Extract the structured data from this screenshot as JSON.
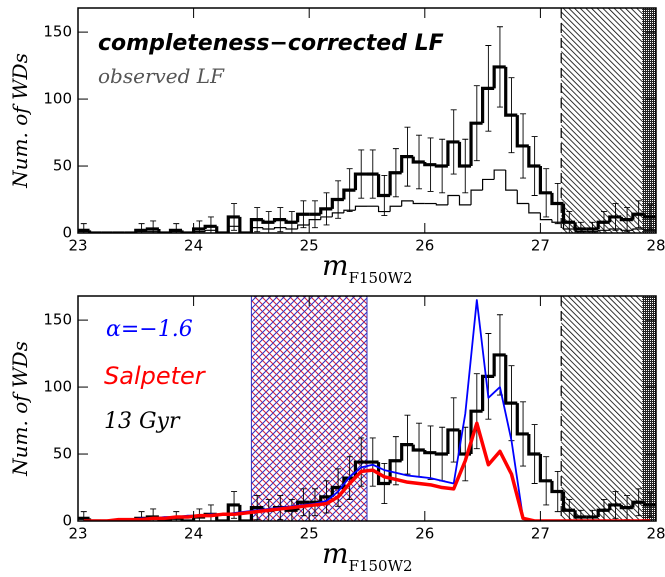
{
  "chart_data": [
    {
      "type": "histogram",
      "annotations": [
        "completeness−corrected LF",
        "observed LF"
      ],
      "ylabel": "Num. of WDs",
      "xlabel": "m",
      "xlabel_sub": "F150W2",
      "bins": [
        23.0,
        23.1,
        23.2,
        23.3,
        23.4,
        23.5,
        23.6,
        23.7,
        23.8,
        23.9,
        24.0,
        24.1,
        24.2,
        24.3,
        24.4,
        24.5,
        24.6,
        24.7,
        24.8,
        24.9,
        25.0,
        25.1,
        25.2,
        25.3,
        25.4,
        25.5,
        25.6,
        25.7,
        25.8,
        25.9,
        26.0,
        26.1,
        26.2,
        26.3,
        26.4,
        26.5,
        26.6,
        26.7,
        26.8,
        26.9,
        27.0,
        27.1,
        27.2,
        27.3,
        27.4,
        27.5,
        27.6,
        27.7,
        27.8,
        27.9,
        28.0
      ],
      "series": [
        {
          "name": "completeness−corrected LF",
          "color": "#000000",
          "values": [
            2,
            0,
            0,
            0,
            0,
            2,
            3,
            0,
            2,
            0,
            3,
            5,
            0,
            12,
            0,
            10,
            8,
            10,
            8,
            14,
            14,
            18,
            25,
            32,
            44,
            44,
            28,
            45,
            57,
            53,
            51,
            50,
            68,
            50,
            82,
            108,
            124,
            88,
            65,
            50,
            30,
            22,
            8,
            3,
            3,
            8,
            12,
            10,
            14,
            12
          ],
          "errors": [
            5,
            0,
            0,
            0,
            0,
            5,
            6,
            0,
            5,
            0,
            6,
            7,
            0,
            10,
            0,
            9,
            8,
            9,
            8,
            10,
            10,
            12,
            14,
            16,
            18,
            18,
            15,
            18,
            22,
            20,
            20,
            20,
            24,
            20,
            28,
            32,
            30,
            28,
            24,
            22,
            18,
            15,
            8,
            5,
            5,
            8,
            10,
            9,
            10,
            9
          ]
        },
        {
          "name": "observed LF",
          "color": "#000000",
          "values": [
            1,
            0,
            0,
            0,
            0,
            1,
            1,
            0,
            1,
            0,
            1,
            2,
            0,
            5,
            0,
            4,
            3,
            4,
            3,
            6,
            10,
            12,
            15,
            17,
            20,
            20,
            16,
            20,
            24,
            22,
            22,
            21,
            28,
            21,
            32,
            40,
            47,
            32,
            22,
            15,
            10,
            8,
            3,
            1,
            1,
            2,
            3,
            2,
            3,
            2
          ]
        }
      ],
      "incomplete_range": [
        27.18,
        28.0
      ],
      "dense_range": [
        27.88,
        28.0
      ],
      "xlim": [
        23,
        28
      ],
      "xticks": [
        23,
        24,
        25,
        26,
        27,
        28
      ],
      "ylim": [
        0,
        168
      ],
      "yticks": [
        0,
        50,
        100,
        150
      ]
    },
    {
      "type": "histogram",
      "annotations": [
        "α=−1.6",
        "Salpeter",
        "13 Gyr"
      ],
      "ylabel": "Num. of WDs",
      "xlabel": "m",
      "xlabel_sub": "F150W2",
      "bins": [
        23.0,
        23.1,
        23.2,
        23.3,
        23.4,
        23.5,
        23.6,
        23.7,
        23.8,
        23.9,
        24.0,
        24.1,
        24.2,
        24.3,
        24.4,
        24.5,
        24.6,
        24.7,
        24.8,
        24.9,
        25.0,
        25.1,
        25.2,
        25.3,
        25.4,
        25.5,
        25.6,
        25.7,
        25.8,
        25.9,
        26.0,
        26.1,
        26.2,
        26.3,
        26.4,
        26.5,
        26.6,
        26.7,
        26.8,
        26.9,
        27.0,
        27.1,
        27.2,
        27.3,
        27.4,
        27.5,
        27.6,
        27.7,
        27.8,
        27.9,
        28.0
      ],
      "series": [
        {
          "name": "13 Gyr",
          "color": "#000000",
          "values": [
            2,
            0,
            0,
            0,
            0,
            2,
            3,
            0,
            2,
            0,
            3,
            5,
            0,
            12,
            0,
            10,
            8,
            10,
            8,
            14,
            14,
            18,
            25,
            32,
            44,
            44,
            28,
            45,
            57,
            53,
            51,
            50,
            68,
            50,
            82,
            108,
            124,
            88,
            65,
            50,
            30,
            22,
            8,
            3,
            3,
            8,
            12,
            10,
            14,
            12
          ],
          "errors": [
            5,
            0,
            0,
            0,
            0,
            5,
            6,
            0,
            5,
            0,
            6,
            7,
            0,
            10,
            0,
            9,
            8,
            9,
            8,
            10,
            10,
            12,
            14,
            16,
            18,
            18,
            15,
            18,
            22,
            20,
            20,
            20,
            24,
            20,
            28,
            32,
            30,
            28,
            24,
            22,
            18,
            15,
            8,
            5,
            5,
            8,
            10,
            9,
            10,
            9
          ]
        }
      ],
      "x": [
        23.05,
        23.15,
        23.25,
        23.35,
        23.45,
        23.55,
        23.65,
        23.75,
        23.85,
        23.95,
        24.05,
        24.15,
        24.25,
        24.35,
        24.45,
        24.55,
        24.65,
        24.75,
        24.85,
        24.95,
        25.05,
        25.15,
        25.25,
        25.35,
        25.45,
        25.55,
        25.65,
        25.75,
        25.85,
        25.95,
        26.05,
        26.15,
        26.25,
        26.35,
        26.45,
        26.55,
        26.65,
        26.75,
        26.85,
        26.95,
        27.05,
        27.15,
        27.25,
        27.35,
        27.45,
        27.55,
        27.65,
        27.75,
        27.85,
        27.95
      ],
      "lines": [
        {
          "name": "α=−1.6",
          "color": "#0000ff",
          "values": [
            0,
            0,
            0,
            1,
            1,
            2,
            2,
            3,
            3,
            4,
            4,
            5,
            5,
            6,
            7,
            8,
            9,
            10,
            11,
            12,
            13,
            15,
            22,
            33,
            40,
            42,
            38,
            36,
            34,
            33,
            32,
            30,
            28,
            80,
            165,
            92,
            100,
            60,
            2,
            0,
            0,
            0,
            0,
            0,
            0,
            0,
            0,
            0,
            0,
            0
          ]
        },
        {
          "name": "Salpeter",
          "color": "#ff0000",
          "values": [
            0,
            0,
            0,
            1,
            1,
            1,
            2,
            2,
            3,
            3,
            4,
            4,
            5,
            5,
            6,
            7,
            8,
            9,
            10,
            11,
            12,
            13,
            18,
            28,
            37,
            38,
            33,
            31,
            29,
            28,
            27,
            25,
            24,
            45,
            73,
            42,
            52,
            35,
            2,
            0,
            0,
            0,
            0,
            0,
            0,
            0,
            0,
            0,
            0,
            0
          ]
        }
      ],
      "fit_range": [
        24.5,
        25.5
      ],
      "incomplete_range": [
        27.18,
        28.0
      ],
      "dense_range": [
        27.88,
        28.0
      ],
      "xlim": [
        23,
        28
      ],
      "xticks": [
        23,
        24,
        25,
        26,
        27,
        28
      ],
      "ylim": [
        0,
        168
      ],
      "yticks": [
        0,
        50,
        100,
        150
      ]
    }
  ]
}
